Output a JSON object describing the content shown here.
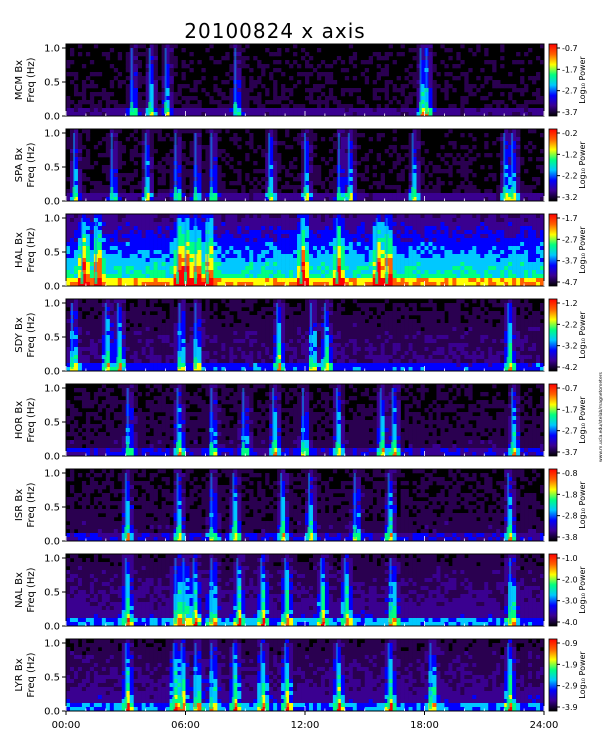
{
  "chart_data": {
    "type": "heatmap",
    "title": "20100824 x axis",
    "x_tick_labels": [
      "00:00",
      "06:00",
      "12:00",
      "18:00",
      "24:00"
    ],
    "x_ticks_hours": [
      0,
      6,
      12,
      18,
      24
    ],
    "xlim_hours": [
      0,
      24
    ],
    "y_tick_labels": [
      "0.0",
      "0.5",
      "1.0"
    ],
    "ylim": [
      0,
      1
    ],
    "ylabel": "Freq (Hz)",
    "colorbar_label": "Log₁₀ Power",
    "colormap": [
      "#000000",
      "#2a0050",
      "#3a0090",
      "#0000ff",
      "#00c8ff",
      "#00ff80",
      "#ffff00",
      "#ff6000",
      "#ff0000"
    ],
    "panels": [
      {
        "station": "MCM Bx",
        "cbar_ticks": [
          "-0.7",
          "-1.7",
          "-2.7",
          "-3.7"
        ],
        "background_level": 0.05,
        "bursts_hours": [
          3.3,
          4.2,
          5.0,
          8.5,
          17.8,
          18.1
        ]
      },
      {
        "station": "SPA Bx",
        "cbar_ticks": [
          "-0.2",
          "-1.2",
          "-2.2",
          "-3.2"
        ],
        "background_level": 0.05,
        "bursts_hours": [
          0.4,
          2.3,
          4.0,
          5.5,
          6.5,
          7.3,
          10.2,
          12.0,
          13.7,
          14.2,
          17.4,
          22.0,
          22.4
        ]
      },
      {
        "station": "HAL Bx",
        "cbar_ticks": [
          "-1.7",
          "-2.7",
          "-3.7",
          "-4.7"
        ],
        "background_level": 0.45,
        "bursts_hours": [
          0.8,
          1.5,
          5.6,
          6.0,
          6.5,
          7.1,
          11.8,
          13.6,
          15.6,
          16.1
        ]
      },
      {
        "station": "SDY Bx",
        "cbar_ticks": [
          "-1.2",
          "-2.2",
          "-3.2",
          "-4.2"
        ],
        "background_level": 0.15,
        "bursts_hours": [
          0.3,
          2.0,
          2.6,
          5.7,
          6.5,
          10.6,
          12.3,
          13.0,
          22.2
        ]
      },
      {
        "station": "HOR Bx",
        "cbar_ticks": [
          "-0.7",
          "-1.7",
          "-2.7",
          "-3.7"
        ],
        "background_level": 0.1,
        "bursts_hours": [
          3.1,
          5.6,
          7.3,
          8.9,
          10.4,
          11.9,
          13.6,
          15.8,
          16.4,
          22.4
        ]
      },
      {
        "station": "ISR Bx",
        "cbar_ticks": [
          "-0.8",
          "-1.8",
          "-2.8",
          "-3.8"
        ],
        "background_level": 0.1,
        "bursts_hours": [
          3.0,
          5.6,
          7.3,
          8.4,
          10.8,
          12.2,
          14.5,
          16.2,
          22.2
        ]
      },
      {
        "station": "NAL Bx",
        "cbar_ticks": [
          "-1.0",
          "-2.0",
          "-3.0",
          "-4.0"
        ],
        "background_level": 0.2,
        "bursts_hours": [
          3.0,
          5.5,
          5.9,
          6.4,
          7.3,
          8.6,
          9.8,
          11.0,
          12.8,
          14.0,
          16.3,
          22.3
        ]
      },
      {
        "station": "LYR Bx",
        "cbar_ticks": [
          "-0.9",
          "-1.9",
          "-2.9",
          "-3.9"
        ],
        "background_level": 0.2,
        "bursts_hours": [
          3.0,
          5.4,
          5.8,
          6.5,
          7.3,
          8.4,
          9.8,
          11.0,
          13.6,
          16.2,
          18.3,
          22.2
        ]
      }
    ]
  },
  "side_note": "www.m.ucla.edu/stelab/magnetometers"
}
